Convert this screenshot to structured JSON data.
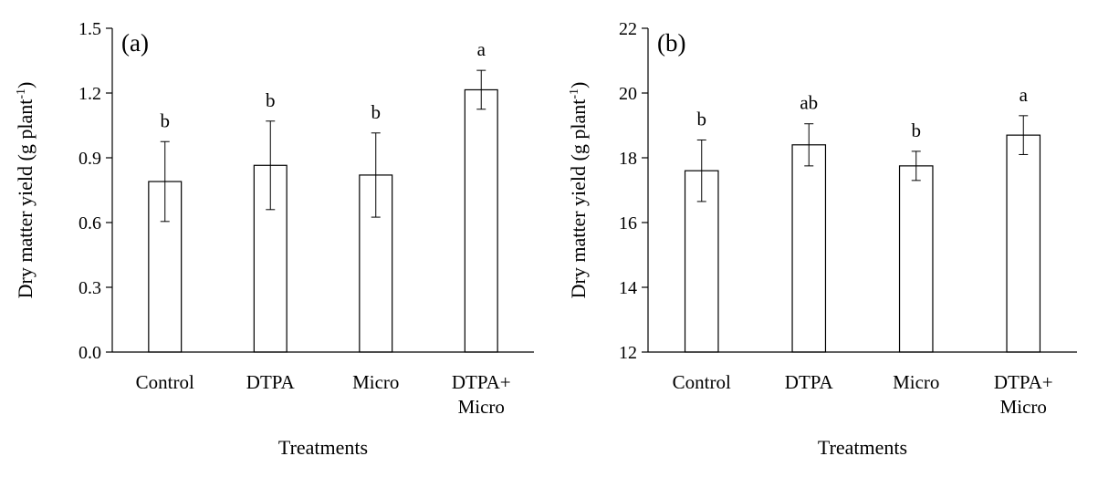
{
  "chart_data": [
    {
      "type": "bar",
      "panel_label": "(a)",
      "categories": [
        [
          "Control"
        ],
        [
          "DTPA"
        ],
        [
          "Micro"
        ],
        [
          "DTPA+",
          "Micro"
        ]
      ],
      "values": [
        0.79,
        0.865,
        0.82,
        1.215
      ],
      "errors": [
        0.185,
        0.205,
        0.195,
        0.09
      ],
      "significance": [
        "b",
        "b",
        "b",
        "a"
      ],
      "ylabel": "Dry matter yield (g plant",
      "ylabel_sup": "-1",
      "ylabel_end": ")",
      "xlabel": "Treatments",
      "ylim": [
        0,
        1.5
      ],
      "yticks": [
        "0.0",
        "0.3",
        "0.6",
        "0.9",
        "1.2",
        "1.5"
      ],
      "bar_color": "#ffffff",
      "grid": false
    },
    {
      "type": "bar",
      "panel_label": "(b)",
      "categories": [
        [
          "Control"
        ],
        [
          "DTPA"
        ],
        [
          "Micro"
        ],
        [
          "DTPA+",
          "Micro"
        ]
      ],
      "values": [
        17.6,
        18.4,
        17.75,
        18.7
      ],
      "errors": [
        0.95,
        0.65,
        0.45,
        0.6
      ],
      "significance": [
        "b",
        "ab",
        "b",
        "a"
      ],
      "ylabel": "Dry matter yield (g plant",
      "ylabel_sup": "-1",
      "ylabel_end": ")",
      "xlabel": "Treatments",
      "ylim": [
        12,
        22
      ],
      "yticks": [
        "12",
        "14",
        "16",
        "18",
        "20",
        "22"
      ],
      "bar_color": "#ffffff",
      "grid": false
    }
  ]
}
